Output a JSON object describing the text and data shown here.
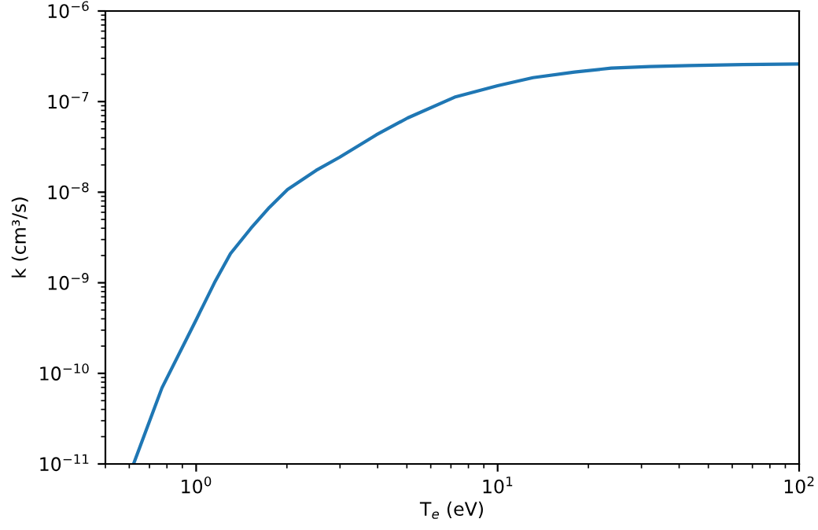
{
  "chart_data": {
    "type": "line",
    "xlabel": "T$_{e}$ (eV)",
    "ylabel": "k (cm³/s)",
    "log": "xy",
    "grid": false,
    "marker": "none",
    "line_style": "solid",
    "x": [
      0.62,
      0.77,
      1.0,
      1.15,
      1.3,
      1.52,
      1.75,
      2.01,
      2.5,
      2.99,
      3.96,
      5.03,
      7.2,
      10,
      13.1,
      18,
      23.8,
      32,
      43.3,
      65,
      100
    ],
    "series": [
      {
        "color": "#1f77b4",
        "values": [
          1e-11,
          6.9e-11,
          3.9e-10,
          1e-09,
          2.1e-09,
          4e-09,
          6.8e-09,
          1.07e-08,
          1.74e-08,
          2.43e-08,
          4.3e-08,
          6.6e-08,
          1.12e-07,
          1.5e-07,
          1.84e-07,
          2.12e-07,
          2.34e-07,
          2.44e-07,
          2.5e-07,
          2.56e-07,
          2.6e-07
        ]
      }
    ],
    "xlim": [
      0.5,
      100
    ],
    "ylim": [
      1e-11,
      1e-06
    ],
    "xticks": [
      {
        "value": 1,
        "label": "10$^{0}$"
      },
      {
        "value": 10,
        "label": "10$^{1}$"
      },
      {
        "value": 100,
        "label": "10$^{2}$"
      }
    ],
    "yticks": [
      {
        "value": 1e-11,
        "label": "10$^{−11}$"
      },
      {
        "value": 1e-10,
        "label": "10$^{−10}$"
      },
      {
        "value": 1e-09,
        "label": "10$^{−9}$"
      },
      {
        "value": 1e-08,
        "label": "10$^{−8}$"
      },
      {
        "value": 1e-07,
        "label": "10$^{−7}$"
      },
      {
        "value": 1e-06,
        "label": "10$^{−6}$"
      }
    ]
  }
}
